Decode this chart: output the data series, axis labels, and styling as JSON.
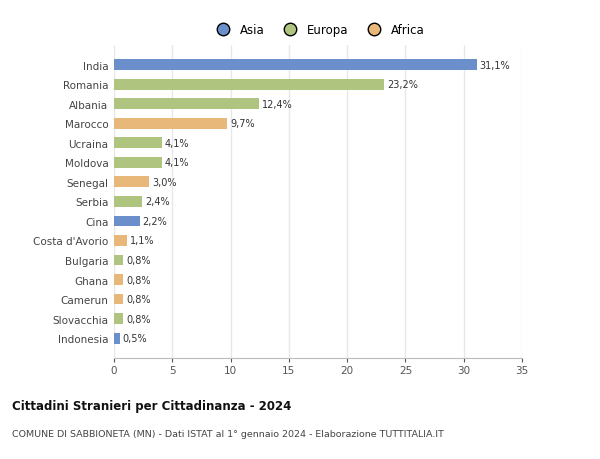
{
  "categories": [
    "India",
    "Romania",
    "Albania",
    "Marocco",
    "Ucraina",
    "Moldova",
    "Senegal",
    "Serbia",
    "Cina",
    "Costa d'Avorio",
    "Bulgaria",
    "Ghana",
    "Camerun",
    "Slovacchia",
    "Indonesia"
  ],
  "values": [
    31.1,
    23.2,
    12.4,
    9.7,
    4.1,
    4.1,
    3.0,
    2.4,
    2.2,
    1.1,
    0.8,
    0.8,
    0.8,
    0.8,
    0.5
  ],
  "labels": [
    "31,1%",
    "23,2%",
    "12,4%",
    "9,7%",
    "4,1%",
    "4,1%",
    "3,0%",
    "2,4%",
    "2,2%",
    "1,1%",
    "0,8%",
    "0,8%",
    "0,8%",
    "0,8%",
    "0,5%"
  ],
  "continents": [
    "Asia",
    "Europa",
    "Europa",
    "Africa",
    "Europa",
    "Europa",
    "Africa",
    "Europa",
    "Asia",
    "Africa",
    "Europa",
    "Africa",
    "Africa",
    "Europa",
    "Asia"
  ],
  "colors": {
    "Asia": "#6b8fca",
    "Europa": "#afc47f",
    "Africa": "#e8b87a"
  },
  "legend_labels": [
    "Asia",
    "Europa",
    "Africa"
  ],
  "title": "Cittadini Stranieri per Cittadinanza - 2024",
  "subtitle": "COMUNE DI SABBIONETA (MN) - Dati ISTAT al 1° gennaio 2024 - Elaborazione TUTTITALIA.IT",
  "xlim": [
    0,
    35
  ],
  "xticks": [
    0,
    5,
    10,
    15,
    20,
    25,
    30,
    35
  ],
  "bg_color": "#ffffff",
  "grid_color": "#e8e8e8",
  "bar_height": 0.55
}
